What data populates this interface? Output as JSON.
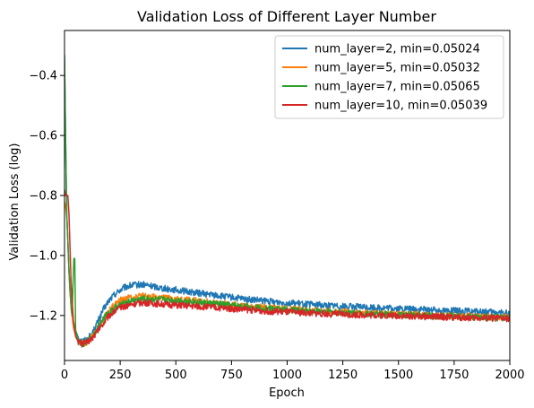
{
  "chart_data": {
    "type": "line",
    "title": "Validation Loss of Different Layer Number",
    "xlabel": "Epoch",
    "ylabel": "Validation Loss (log)",
    "xlim": [
      0,
      2000
    ],
    "ylim": [
      -1.35,
      -0.25
    ],
    "xticks": [
      0,
      250,
      500,
      750,
      1000,
      1250,
      1500,
      1750,
      2000
    ],
    "xtick_labels": [
      "0",
      "250",
      "500",
      "750",
      "1000",
      "1250",
      "1500",
      "1750",
      "2000"
    ],
    "yticks": [
      -1.2,
      -1.0,
      -0.8,
      -0.6,
      -0.4
    ],
    "ytick_labels": [
      "−1.2",
      "−1.0",
      "−0.8",
      "−0.6",
      "−0.4"
    ],
    "grid": false,
    "legend_position": "top-right",
    "series": [
      {
        "name": "num_layer=2, min=0.05024",
        "color": "#1f77b4",
        "x": [
          0,
          5,
          10,
          15,
          20,
          25,
          30,
          40,
          50,
          60,
          70,
          80,
          100,
          125,
          150,
          175,
          200,
          225,
          250,
          275,
          300,
          325,
          350,
          375,
          400,
          450,
          500,
          550,
          600,
          700,
          800,
          900,
          1000,
          1100,
          1200,
          1300,
          1400,
          1500,
          1600,
          1700,
          1800,
          1900,
          2000
        ],
        "values": [
          -0.33,
          -0.62,
          -0.86,
          -0.95,
          -1.05,
          -1.12,
          -1.17,
          -1.22,
          -1.25,
          -1.27,
          -1.28,
          -1.285,
          -1.28,
          -1.26,
          -1.22,
          -1.18,
          -1.15,
          -1.13,
          -1.115,
          -1.105,
          -1.1,
          -1.098,
          -1.097,
          -1.1,
          -1.103,
          -1.11,
          -1.115,
          -1.12,
          -1.125,
          -1.135,
          -1.145,
          -1.152,
          -1.158,
          -1.163,
          -1.167,
          -1.171,
          -1.174,
          -1.177,
          -1.18,
          -1.183,
          -1.186,
          -1.189,
          -1.192
        ]
      },
      {
        "name": "num_layer=5, min=0.05032",
        "color": "#ff7f0e",
        "x": [
          0,
          5,
          10,
          15,
          20,
          25,
          30,
          40,
          50,
          60,
          70,
          80,
          100,
          125,
          150,
          175,
          200,
          225,
          250,
          275,
          300,
          325,
          350,
          375,
          400,
          450,
          500,
          550,
          600,
          700,
          800,
          900,
          1000,
          1100,
          1200,
          1300,
          1400,
          1500,
          1600,
          1700,
          1800,
          1900,
          2000
        ],
        "values": [
          -0.82,
          -0.84,
          -0.87,
          -0.95,
          -1.05,
          -1.12,
          -1.18,
          -1.24,
          -1.27,
          -1.285,
          -1.29,
          -1.295,
          -1.29,
          -1.27,
          -1.24,
          -1.21,
          -1.185,
          -1.165,
          -1.15,
          -1.143,
          -1.138,
          -1.136,
          -1.135,
          -1.137,
          -1.139,
          -1.142,
          -1.145,
          -1.148,
          -1.152,
          -1.16,
          -1.167,
          -1.173,
          -1.178,
          -1.183,
          -1.187,
          -1.19,
          -1.193,
          -1.196,
          -1.198,
          -1.2,
          -1.202,
          -1.204,
          -1.206
        ]
      },
      {
        "name": "num_layer=7, min=0.05065",
        "color": "#2ca02c",
        "x": [
          0,
          5,
          10,
          15,
          20,
          25,
          30,
          34,
          38,
          42,
          46,
          50,
          60,
          70,
          80,
          100,
          125,
          150,
          175,
          200,
          225,
          250,
          275,
          300,
          325,
          350,
          375,
          400,
          450,
          500,
          550,
          600,
          700,
          800,
          900,
          1000,
          1100,
          1200,
          1300,
          1400,
          1500,
          1600,
          1700,
          1800,
          1900,
          2000
        ],
        "values": [
          -0.35,
          -0.62,
          -0.86,
          -0.95,
          -1.05,
          -1.12,
          -1.17,
          -1.2,
          -1.1,
          -1.01,
          -1.01,
          -1.25,
          -1.28,
          -1.29,
          -1.295,
          -1.29,
          -1.27,
          -1.24,
          -1.21,
          -1.19,
          -1.175,
          -1.165,
          -1.158,
          -1.152,
          -1.148,
          -1.145,
          -1.145,
          -1.146,
          -1.148,
          -1.15,
          -1.152,
          -1.156,
          -1.163,
          -1.17,
          -1.176,
          -1.181,
          -1.185,
          -1.189,
          -1.192,
          -1.195,
          -1.197,
          -1.2,
          -1.202,
          -1.204,
          -1.206,
          -1.208
        ]
      },
      {
        "name": "num_layer=10, min=0.05039",
        "color": "#d62728",
        "x": [
          0,
          5,
          10,
          15,
          20,
          25,
          30,
          40,
          50,
          60,
          70,
          80,
          100,
          125,
          150,
          175,
          200,
          225,
          250,
          275,
          300,
          325,
          350,
          375,
          400,
          450,
          500,
          550,
          600,
          700,
          800,
          900,
          1000,
          1100,
          1200,
          1300,
          1400,
          1500,
          1600,
          1700,
          1800,
          1900,
          2000
        ],
        "values": [
          -0.78,
          -0.8,
          -0.8,
          -0.8,
          -0.86,
          -0.98,
          -1.1,
          -1.22,
          -1.27,
          -1.285,
          -1.29,
          -1.295,
          -1.29,
          -1.275,
          -1.25,
          -1.225,
          -1.2,
          -1.185,
          -1.175,
          -1.168,
          -1.163,
          -1.16,
          -1.158,
          -1.158,
          -1.16,
          -1.163,
          -1.166,
          -1.168,
          -1.17,
          -1.175,
          -1.18,
          -1.185,
          -1.189,
          -1.192,
          -1.195,
          -1.197,
          -1.199,
          -1.201,
          -1.203,
          -1.205,
          -1.207,
          -1.209,
          -1.21
        ]
      }
    ]
  }
}
